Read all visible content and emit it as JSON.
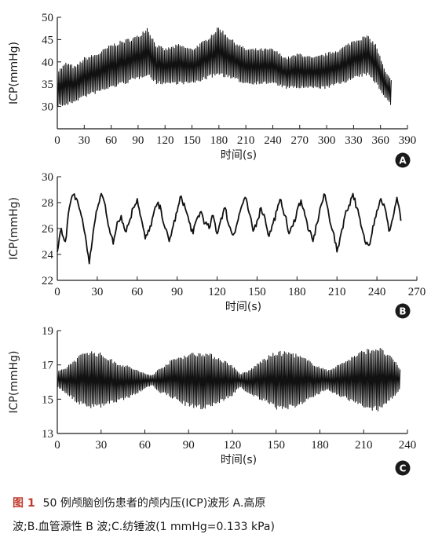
{
  "caption": {
    "label": "图 1",
    "line1": "50 例颅脑创伤患者的颅内压(ICP)波形 A.高原",
    "line2": "波;B.血管源性 B 波;C.纺锤波(1 mmHg=0.133 kPa)"
  },
  "chart_data": [
    {
      "panel": "A",
      "type": "line",
      "xlabel": "时间(s)",
      "ylabel": "ICP(mmHg)",
      "xlim": [
        0,
        390
      ],
      "ylim": [
        25,
        50
      ],
      "xticks": [
        0,
        30,
        60,
        90,
        120,
        150,
        180,
        210,
        240,
        270,
        300,
        330,
        360,
        390
      ],
      "yticks": [
        30,
        35,
        40,
        45,
        50
      ],
      "envelope": {
        "x": [
          0,
          10,
          20,
          30,
          45,
          60,
          75,
          90,
          100,
          110,
          120,
          135,
          150,
          165,
          180,
          195,
          210,
          225,
          240,
          255,
          270,
          285,
          300,
          315,
          330,
          345,
          355,
          365,
          372
        ],
        "upper": [
          38,
          40,
          39,
          41,
          42,
          44,
          45,
          46,
          48,
          44,
          43,
          44,
          43,
          45,
          48,
          45,
          43,
          43,
          43,
          41,
          42,
          41,
          42,
          43,
          45,
          46,
          44,
          38,
          36
        ],
        "lower": [
          30,
          30,
          31,
          32,
          33,
          34,
          35,
          36,
          37,
          35,
          35,
          35,
          35,
          36,
          37,
          36,
          35,
          35,
          35,
          34,
          34,
          34,
          34,
          35,
          36,
          37,
          35,
          32,
          30
        ]
      }
    },
    {
      "panel": "B",
      "type": "line",
      "xlabel": "时间(s)",
      "ylabel": "ICP(mmHg)",
      "xlim": [
        0,
        270
      ],
      "ylim": [
        22,
        30
      ],
      "xticks": [
        0,
        30,
        60,
        90,
        120,
        150,
        180,
        210,
        240,
        270
      ],
      "yticks": [
        22,
        24,
        26,
        28,
        30
      ],
      "x": [
        0,
        3,
        6,
        9,
        12,
        15,
        18,
        21,
        24,
        27,
        30,
        33,
        36,
        39,
        42,
        45,
        48,
        51,
        54,
        57,
        60,
        63,
        66,
        69,
        72,
        75,
        78,
        81,
        84,
        87,
        90,
        93,
        96,
        99,
        102,
        105,
        108,
        111,
        114,
        117,
        120,
        123,
        126,
        129,
        132,
        135,
        138,
        141,
        144,
        147,
        150,
        153,
        156,
        159,
        162,
        165,
        168,
        171,
        174,
        177,
        180,
        183,
        186,
        189,
        192,
        195,
        198,
        201,
        204,
        207,
        210,
        213,
        216,
        219,
        222,
        225,
        228,
        231,
        234,
        237,
        240,
        243,
        246,
        249,
        252,
        255,
        258
      ],
      "y": [
        24.2,
        26.0,
        25.0,
        27.6,
        28.6,
        28.2,
        27.0,
        25.5,
        23.3,
        25.8,
        27.5,
        28.7,
        27.8,
        26.0,
        24.8,
        26.5,
        27.0,
        25.8,
        26.5,
        27.6,
        28.3,
        26.8,
        25.2,
        25.8,
        27.0,
        27.9,
        27.4,
        26.0,
        25.0,
        26.2,
        27.3,
        28.5,
        27.6,
        26.5,
        25.6,
        26.8,
        27.3,
        26.4,
        26.0,
        27.0,
        25.6,
        26.8,
        27.6,
        26.2,
        25.5,
        26.4,
        27.6,
        28.4,
        27.2,
        25.8,
        26.6,
        27.6,
        26.8,
        25.4,
        26.4,
        27.4,
        28.2,
        27.0,
        25.6,
        26.2,
        27.4,
        28.2,
        27.0,
        25.8,
        25.0,
        26.4,
        27.8,
        28.6,
        27.0,
        25.8,
        24.2,
        25.6,
        27.0,
        27.8,
        28.7,
        27.6,
        26.2,
        25.0,
        24.7,
        26.2,
        27.4,
        28.3,
        27.6,
        25.8,
        26.8,
        28.4,
        26.6
      ]
    },
    {
      "panel": "C",
      "type": "line",
      "xlabel": "时间(s)",
      "ylabel": "ICP(mmHg)",
      "xlim": [
        0,
        240
      ],
      "ylim": [
        13,
        19
      ],
      "xticks": [
        0,
        30,
        60,
        90,
        120,
        150,
        180,
        210,
        240
      ],
      "yticks": [
        13,
        15,
        17,
        19
      ],
      "envelope": {
        "x": [
          0,
          5,
          10,
          20,
          30,
          40,
          50,
          60,
          65,
          70,
          80,
          90,
          100,
          110,
          120,
          125,
          130,
          140,
          150,
          160,
          170,
          180,
          185,
          190,
          200,
          210,
          220,
          230,
          235
        ],
        "upper": [
          16.6,
          16.8,
          17.2,
          17.9,
          17.7,
          17.2,
          16.9,
          16.5,
          16.4,
          16.8,
          17.4,
          17.7,
          17.8,
          17.5,
          17.0,
          16.5,
          16.6,
          17.3,
          17.8,
          17.8,
          17.4,
          16.9,
          16.7,
          16.9,
          17.4,
          17.9,
          18.1,
          17.4,
          16.8
        ],
        "lower": [
          15.7,
          15.4,
          15.0,
          14.4,
          14.5,
          14.8,
          15.1,
          15.6,
          15.8,
          15.4,
          15.0,
          14.5,
          14.4,
          14.7,
          15.2,
          15.7,
          15.4,
          14.9,
          14.4,
          14.4,
          14.8,
          15.3,
          15.6,
          15.3,
          14.9,
          14.4,
          14.3,
          15.0,
          15.6
        ]
      }
    }
  ],
  "panel_badges": [
    "A",
    "B",
    "C"
  ]
}
